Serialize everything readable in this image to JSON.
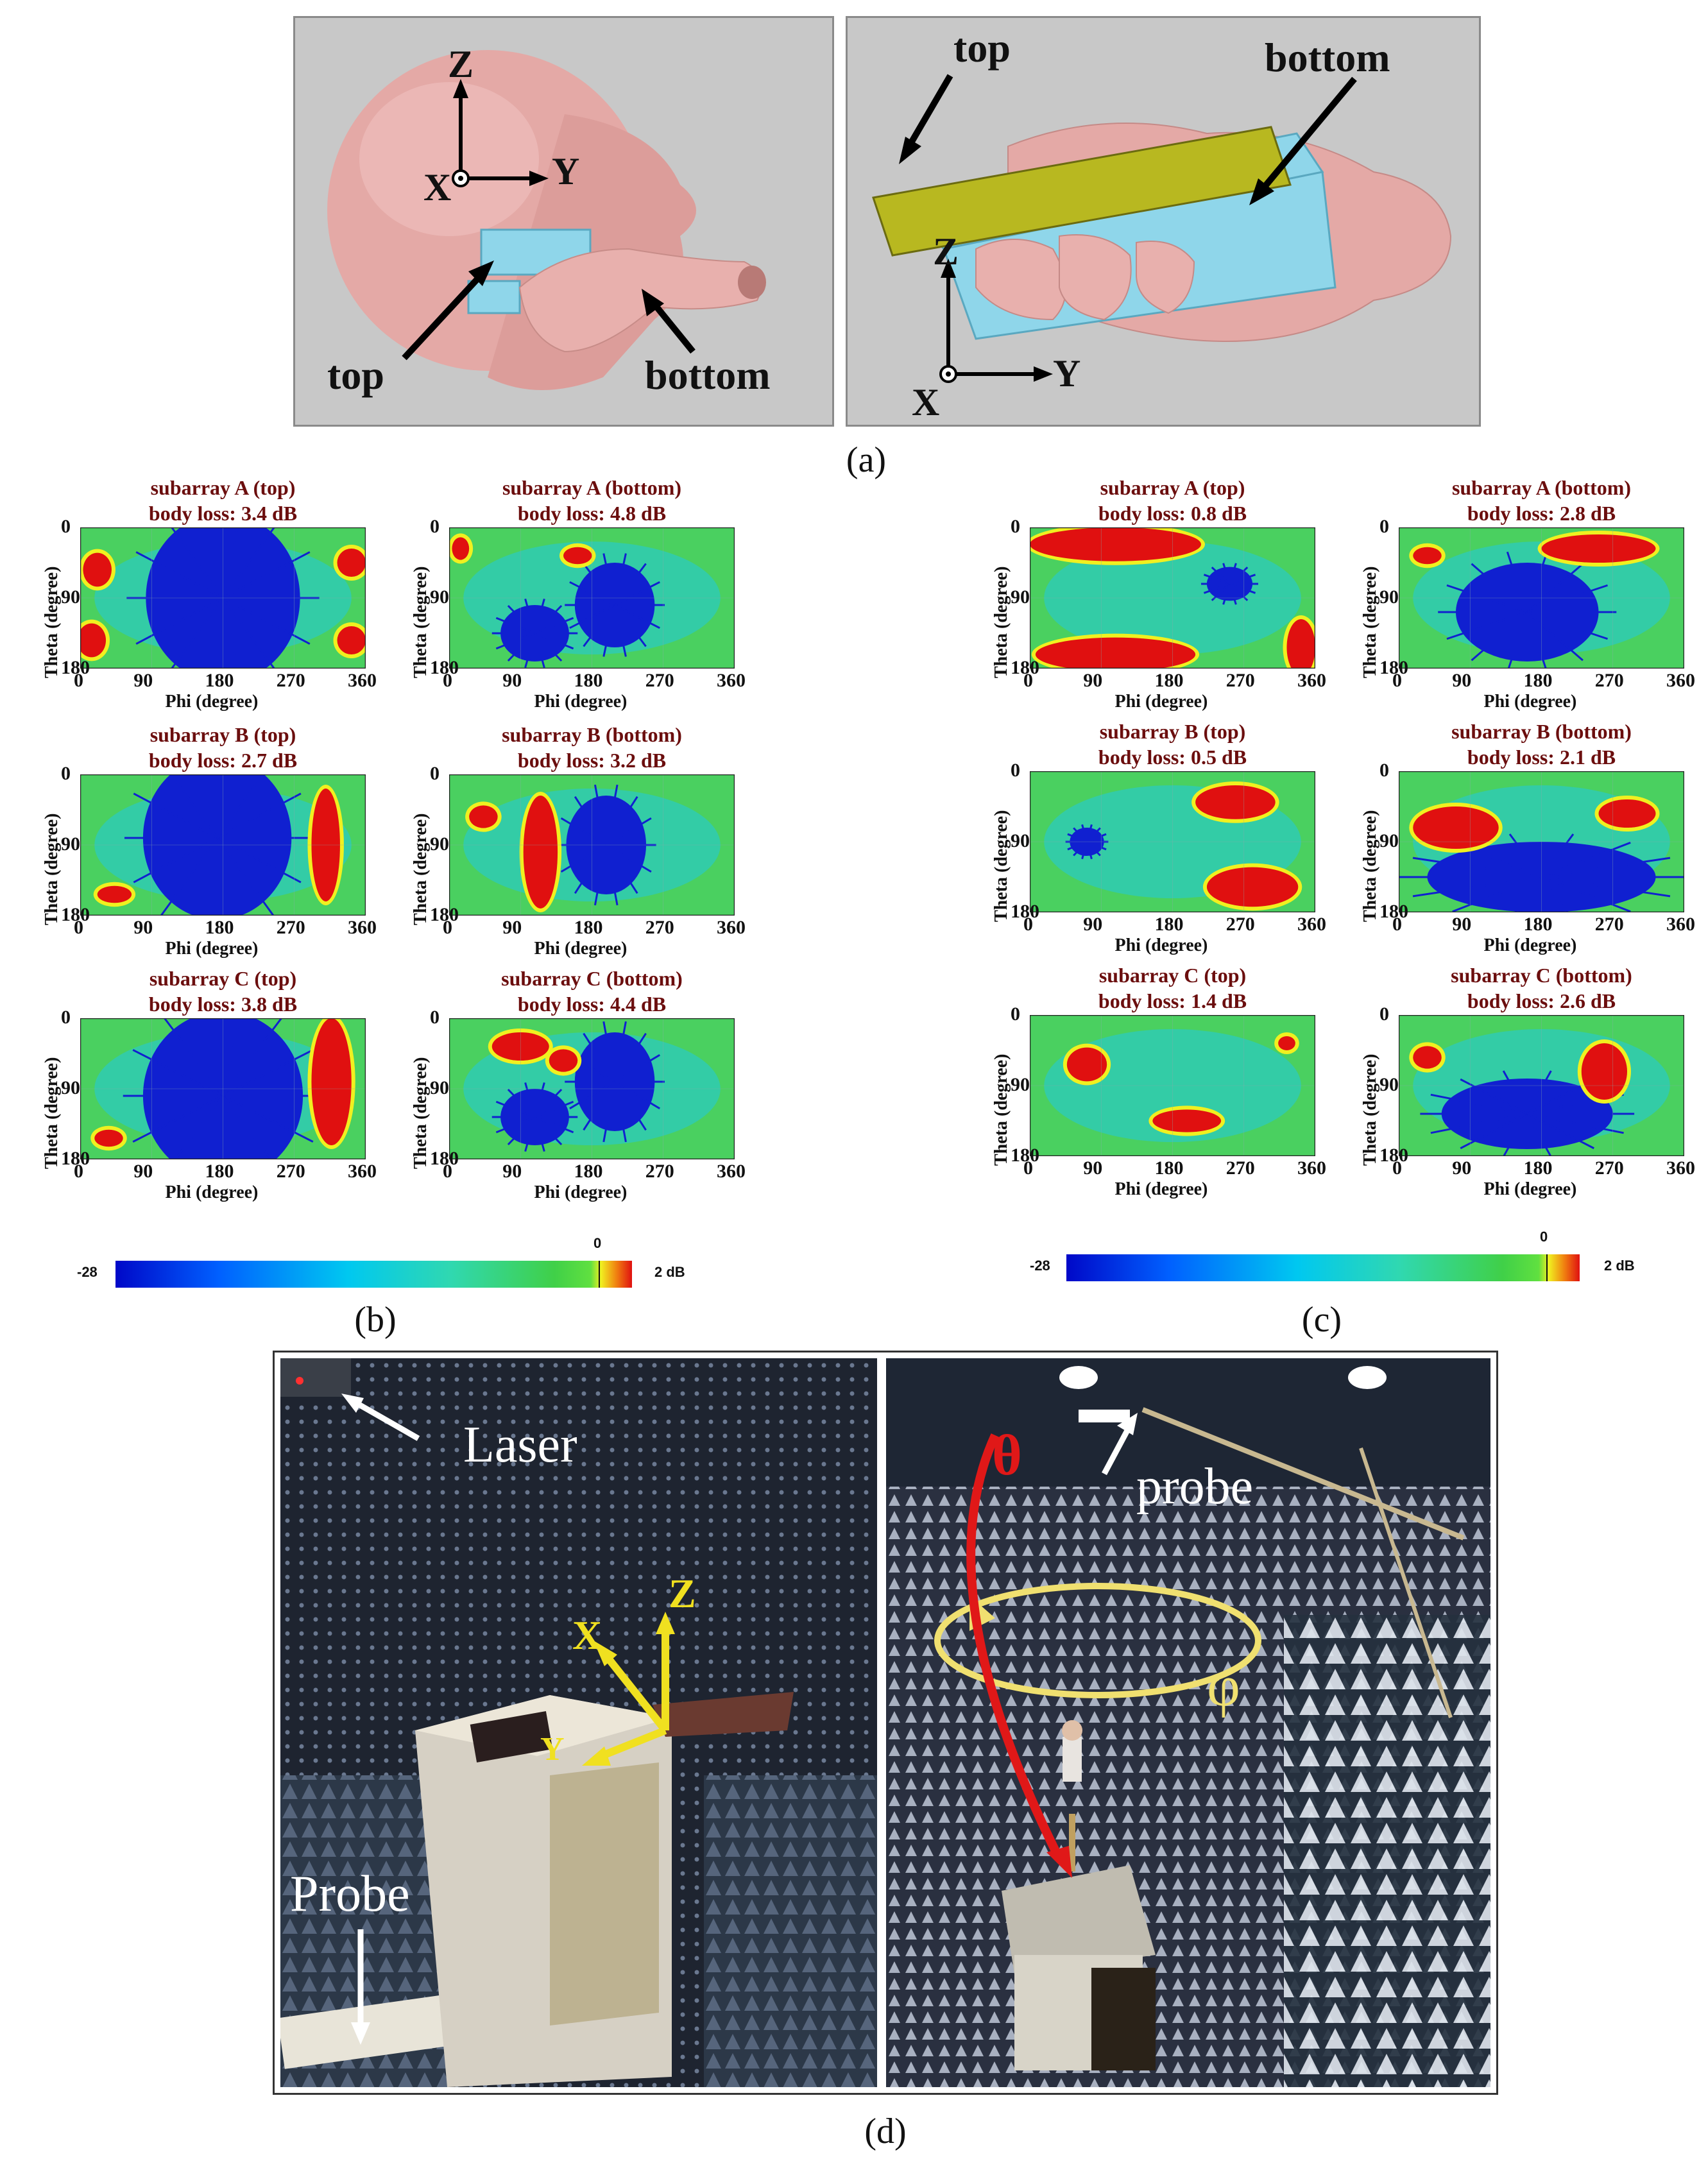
{
  "panel_a": {
    "caption": "(a)",
    "left": {
      "axis_z": "Z",
      "axis_x": "X",
      "axis_y": "Y",
      "label_top": "top",
      "label_bottom": "bottom"
    },
    "right": {
      "axis_z": "Z",
      "axis_x": "X",
      "axis_y": "Y",
      "label_top": "top",
      "label_bottom": "bottom"
    }
  },
  "axis_text": {
    "xlabel": "Phi (degree)",
    "ylabel": "Theta (degree)",
    "xticks": [
      "0",
      "90",
      "180",
      "270",
      "360"
    ],
    "yticks": [
      "0",
      "90",
      "180"
    ]
  },
  "panel_b": {
    "caption": "(b)",
    "plots": [
      {
        "title": "subarray A (top)",
        "loss": "body loss: 3.4 dB"
      },
      {
        "title": "subarray A (bottom)",
        "loss": "body loss: 4.8 dB"
      },
      {
        "title": "subarray B (top)",
        "loss": "body loss: 2.7 dB"
      },
      {
        "title": "subarray B (bottom)",
        "loss": "body loss: 3.2 dB"
      },
      {
        "title": "subarray C (top)",
        "loss": "body loss: 3.8 dB"
      },
      {
        "title": "subarray C (bottom)",
        "loss": "body loss: 4.4 dB"
      }
    ],
    "colorbar": {
      "min": "-28",
      "zero": "0",
      "max": "2 dB"
    }
  },
  "panel_c": {
    "caption": "(c)",
    "plots": [
      {
        "title": "subarray A (top)",
        "loss": "body loss: 0.8 dB"
      },
      {
        "title": "subarray A (bottom)",
        "loss": "body loss: 2.8 dB"
      },
      {
        "title": "subarray B (top)",
        "loss": "body loss: 0.5 dB"
      },
      {
        "title": "subarray B (bottom)",
        "loss": "body loss: 2.1 dB"
      },
      {
        "title": "subarray C (top)",
        "loss": "body loss: 1.4 dB"
      },
      {
        "title": "subarray C (bottom)",
        "loss": "body loss: 2.6 dB"
      }
    ],
    "colorbar": {
      "min": "-28",
      "zero": "0",
      "max": "2 dB"
    }
  },
  "panel_d": {
    "caption": "(d)",
    "left": {
      "laser": "Laser",
      "probe": "Probe",
      "axis_x": "X",
      "axis_z": "Z",
      "axis_y": "Y"
    },
    "right": {
      "theta": "θ",
      "phi": "φ",
      "probe": "probe"
    }
  },
  "colors": {
    "blue": "#1020d0",
    "cyan": "#20c8e0",
    "green": "#4ad060",
    "yellow": "#f0f020",
    "red": "#e01010"
  }
}
